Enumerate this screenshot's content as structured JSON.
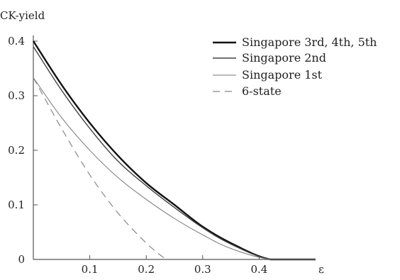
{
  "chart_data": {
    "type": "line",
    "title": "",
    "ylabel": "CK-yield",
    "xlabel": "ε",
    "xlim": [
      0,
      0.5
    ],
    "ylim": [
      0,
      0.4
    ],
    "x_ticks": [
      0.1,
      0.2,
      0.3,
      0.4
    ],
    "y_ticks": [
      0,
      0.1,
      0.2,
      0.3,
      0.4
    ],
    "x_tick_labels": [
      "0.1",
      "0.2",
      "0.3",
      "0.4"
    ],
    "y_tick_labels": [
      "0",
      "0.1",
      "0.2",
      "0.3",
      "0.4"
    ],
    "grid": false,
    "legend_position": "top-right",
    "series": [
      {
        "name": "Singapore 3rd, 4th, 5th",
        "color": "#111111",
        "style": "solid-thick",
        "points": [
          [
            0,
            0.4
          ],
          [
            0.05,
            0.32
          ],
          [
            0.1,
            0.25
          ],
          [
            0.15,
            0.19
          ],
          [
            0.2,
            0.14
          ],
          [
            0.25,
            0.1
          ],
          [
            0.3,
            0.06
          ],
          [
            0.35,
            0.03
          ],
          [
            0.42,
            0
          ],
          [
            0.5,
            0
          ]
        ]
      },
      {
        "name": "Singapore 2nd",
        "color": "#444444",
        "style": "solid",
        "points": [
          [
            0,
            0.39
          ],
          [
            0.05,
            0.31
          ],
          [
            0.1,
            0.24
          ],
          [
            0.15,
            0.18
          ],
          [
            0.2,
            0.135
          ],
          [
            0.25,
            0.095
          ],
          [
            0.3,
            0.058
          ],
          [
            0.35,
            0.028
          ],
          [
            0.42,
            0
          ],
          [
            0.5,
            0
          ]
        ]
      },
      {
        "name": "Singapore 1st",
        "color": "#777777",
        "style": "solid-thin",
        "points": [
          [
            0,
            0.333
          ],
          [
            0.05,
            0.26
          ],
          [
            0.1,
            0.2
          ],
          [
            0.15,
            0.15
          ],
          [
            0.2,
            0.11
          ],
          [
            0.25,
            0.075
          ],
          [
            0.3,
            0.045
          ],
          [
            0.35,
            0.02
          ],
          [
            0.42,
            0
          ],
          [
            0.5,
            0
          ]
        ]
      },
      {
        "name": "6-state",
        "color": "#888888",
        "style": "dashed",
        "points": [
          [
            0,
            0.333
          ],
          [
            0.05,
            0.24
          ],
          [
            0.1,
            0.155
          ],
          [
            0.15,
            0.085
          ],
          [
            0.2,
            0.03
          ],
          [
            0.235,
            0
          ]
        ]
      }
    ]
  }
}
